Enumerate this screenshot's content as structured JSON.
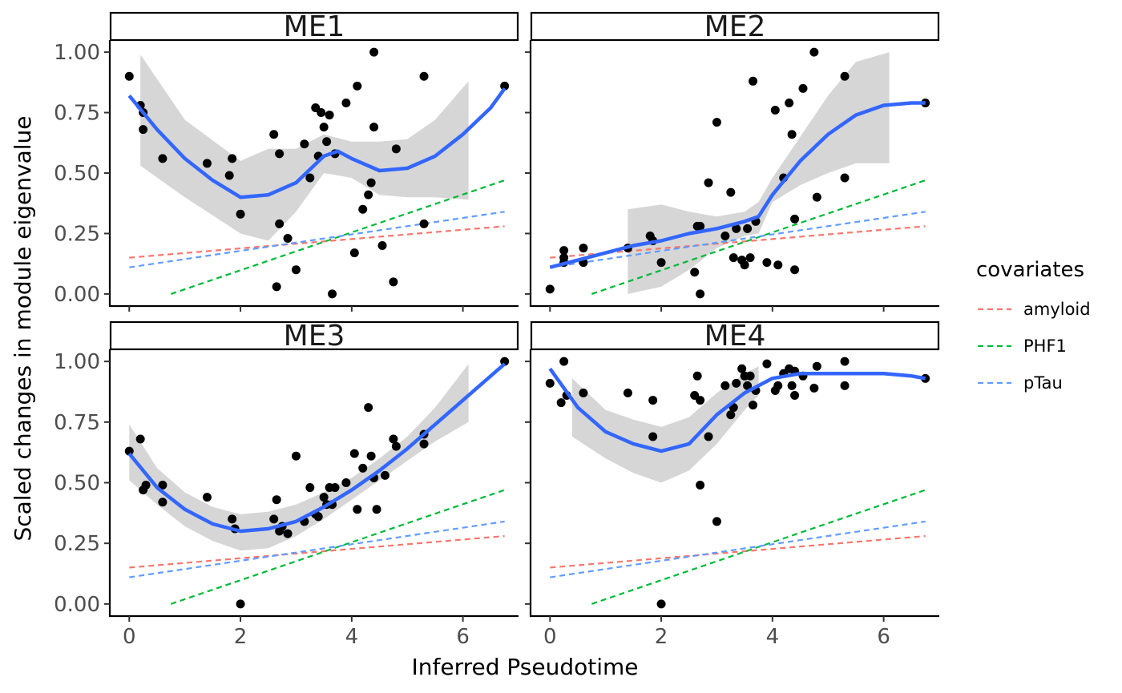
{
  "chart_data": {
    "type": "scatter",
    "xlabel": "Inferred Pseudotime",
    "ylabel": "Scaled changes in module eigenvalue",
    "xlim": [
      -0.35,
      7.0
    ],
    "ylim": [
      -0.05,
      1.05
    ],
    "x_ticks": [
      0,
      2,
      4,
      6
    ],
    "x_tick_labels": [
      "0",
      "2",
      "4",
      "6"
    ],
    "y_ticks": [
      0,
      0.25,
      0.5,
      0.75,
      1.0
    ],
    "y_tick_labels": [
      "0.00",
      "0.25",
      "0.50",
      "0.75",
      "1.00"
    ],
    "grid": false,
    "legend": {
      "title": "covariates",
      "placement": "right",
      "items": [
        {
          "name": "amyloid",
          "color": "#F8766D"
        },
        {
          "name": "PHF1",
          "color": "#00BA38"
        },
        {
          "name": "pTau",
          "color": "#619CFF"
        }
      ]
    },
    "covariate_lines": [
      {
        "name": "amyloid",
        "color": "#F8766D",
        "x": [
          0,
          6.75
        ],
        "y": [
          0.15,
          0.28
        ]
      },
      {
        "name": "PHF1",
        "color": "#00BA38",
        "x": [
          0.75,
          6.75
        ],
        "y": [
          0.0,
          0.47
        ]
      },
      {
        "name": "pTau",
        "color": "#619CFF",
        "x": [
          0,
          6.75
        ],
        "y": [
          0.11,
          0.34
        ]
      }
    ],
    "smooth_color": "#3366FF",
    "point_color": "#000000",
    "ribbon_color": "#999999",
    "panels": [
      {
        "title": "ME1",
        "points": [
          [
            0,
            0.9
          ],
          [
            0.2,
            0.78
          ],
          [
            0.25,
            0.75
          ],
          [
            0.25,
            0.68
          ],
          [
            0.6,
            0.56
          ],
          [
            1.4,
            0.54
          ],
          [
            1.8,
            0.49
          ],
          [
            1.85,
            0.56
          ],
          [
            2.0,
            0.33
          ],
          [
            2.6,
            0.66
          ],
          [
            2.65,
            0.03
          ],
          [
            2.7,
            0.58
          ],
          [
            2.7,
            0.29
          ],
          [
            2.85,
            0.23
          ],
          [
            3.0,
            0.1
          ],
          [
            3.15,
            0.62
          ],
          [
            3.25,
            0.48
          ],
          [
            3.35,
            0.77
          ],
          [
            3.4,
            0.57
          ],
          [
            3.45,
            0.75
          ],
          [
            3.5,
            0.69
          ],
          [
            3.55,
            0.63
          ],
          [
            3.6,
            0.74
          ],
          [
            3.65,
            0.0
          ],
          [
            3.7,
            0.58
          ],
          [
            3.9,
            0.79
          ],
          [
            4.05,
            0.17
          ],
          [
            4.1,
            0.86
          ],
          [
            4.2,
            0.35
          ],
          [
            4.3,
            0.41
          ],
          [
            4.35,
            0.46
          ],
          [
            4.4,
            0.69
          ],
          [
            4.4,
            1.0
          ],
          [
            4.55,
            0.2
          ],
          [
            4.75,
            0.05
          ],
          [
            4.8,
            0.6
          ],
          [
            5.3,
            0.9
          ],
          [
            5.3,
            0.29
          ],
          [
            6.75,
            0.86
          ]
        ],
        "smooth": [
          [
            0,
            0.82
          ],
          [
            0.5,
            0.68
          ],
          [
            1.0,
            0.56
          ],
          [
            1.5,
            0.47
          ],
          [
            2.0,
            0.4
          ],
          [
            2.5,
            0.41
          ],
          [
            3.0,
            0.46
          ],
          [
            3.5,
            0.57
          ],
          [
            3.75,
            0.59
          ],
          [
            4.0,
            0.56
          ],
          [
            4.5,
            0.51
          ],
          [
            5.0,
            0.52
          ],
          [
            5.5,
            0.57
          ],
          [
            6.0,
            0.66
          ],
          [
            6.5,
            0.77
          ],
          [
            6.75,
            0.85
          ]
        ],
        "ribbon_x": [
          0.2,
          1.0,
          2.0,
          2.5,
          3.0,
          3.5,
          4.0,
          4.5,
          5.0,
          5.5,
          6.1
        ],
        "ribbon_lower": [
          0.53,
          0.4,
          0.25,
          0.22,
          0.34,
          0.5,
          0.48,
          0.41,
          0.4,
          0.4,
          0.39
        ],
        "ribbon_upper": [
          0.99,
          0.72,
          0.55,
          0.6,
          0.6,
          0.66,
          0.63,
          0.63,
          0.64,
          0.72,
          0.88
        ]
      },
      {
        "title": "ME2",
        "points": [
          [
            0,
            0.02
          ],
          [
            0.25,
            0.13
          ],
          [
            0.25,
            0.18
          ],
          [
            0.25,
            0.15
          ],
          [
            0.6,
            0.19
          ],
          [
            0.6,
            0.13
          ],
          [
            1.4,
            0.19
          ],
          [
            1.8,
            0.24
          ],
          [
            1.85,
            0.22
          ],
          [
            2.0,
            0.13
          ],
          [
            2.6,
            0.09
          ],
          [
            2.65,
            0.28
          ],
          [
            2.7,
            0.28
          ],
          [
            2.7,
            0.0
          ],
          [
            2.85,
            0.46
          ],
          [
            3.0,
            0.71
          ],
          [
            3.15,
            0.24
          ],
          [
            3.25,
            0.42
          ],
          [
            3.3,
            0.15
          ],
          [
            3.35,
            0.27
          ],
          [
            3.45,
            0.14
          ],
          [
            3.5,
            0.12
          ],
          [
            3.55,
            0.27
          ],
          [
            3.6,
            0.15
          ],
          [
            3.65,
            0.88
          ],
          [
            3.7,
            0.3
          ],
          [
            3.9,
            0.13
          ],
          [
            4.05,
            0.76
          ],
          [
            4.1,
            0.12
          ],
          [
            4.2,
            0.48
          ],
          [
            4.3,
            0.79
          ],
          [
            4.35,
            0.66
          ],
          [
            4.4,
            0.31
          ],
          [
            4.4,
            0.1
          ],
          [
            4.55,
            0.85
          ],
          [
            4.75,
            1.0
          ],
          [
            4.8,
            0.4
          ],
          [
            5.3,
            0.9
          ],
          [
            5.3,
            0.48
          ],
          [
            6.75,
            0.79
          ]
        ],
        "smooth": [
          [
            0,
            0.11
          ],
          [
            0.5,
            0.14
          ],
          [
            1.0,
            0.17
          ],
          [
            1.5,
            0.2
          ],
          [
            2.0,
            0.22
          ],
          [
            2.5,
            0.25
          ],
          [
            3.0,
            0.27
          ],
          [
            3.5,
            0.3
          ],
          [
            3.75,
            0.32
          ],
          [
            4.0,
            0.41
          ],
          [
            4.5,
            0.55
          ],
          [
            5.0,
            0.66
          ],
          [
            5.5,
            0.74
          ],
          [
            6.0,
            0.78
          ],
          [
            6.5,
            0.79
          ],
          [
            6.75,
            0.79
          ]
        ],
        "ribbon_x": [
          1.4,
          2.0,
          2.5,
          3.0,
          3.5,
          3.75,
          4.0,
          4.5,
          5.0,
          5.5,
          6.1
        ],
        "ribbon_lower": [
          0.0,
          0.03,
          0.1,
          0.19,
          0.24,
          0.25,
          0.38,
          0.45,
          0.5,
          0.54,
          0.54
        ],
        "ribbon_upper": [
          0.35,
          0.37,
          0.34,
          0.32,
          0.34,
          0.38,
          0.48,
          0.65,
          0.82,
          0.96,
          1.0
        ]
      },
      {
        "title": "ME3",
        "points": [
          [
            0,
            0.63
          ],
          [
            0.2,
            0.68
          ],
          [
            0.25,
            0.47
          ],
          [
            0.3,
            0.49
          ],
          [
            0.6,
            0.49
          ],
          [
            0.6,
            0.42
          ],
          [
            1.4,
            0.44
          ],
          [
            1.85,
            0.35
          ],
          [
            1.9,
            0.31
          ],
          [
            2.0,
            0.0
          ],
          [
            2.6,
            0.35
          ],
          [
            2.65,
            0.43
          ],
          [
            2.7,
            0.3
          ],
          [
            2.75,
            0.32
          ],
          [
            2.85,
            0.29
          ],
          [
            3.0,
            0.61
          ],
          [
            3.15,
            0.34
          ],
          [
            3.25,
            0.48
          ],
          [
            3.35,
            0.37
          ],
          [
            3.4,
            0.36
          ],
          [
            3.5,
            0.44
          ],
          [
            3.55,
            0.41
          ],
          [
            3.6,
            0.48
          ],
          [
            3.65,
            0.41
          ],
          [
            3.7,
            0.48
          ],
          [
            3.9,
            0.5
          ],
          [
            4.05,
            0.62
          ],
          [
            4.1,
            0.39
          ],
          [
            4.2,
            0.56
          ],
          [
            4.3,
            0.81
          ],
          [
            4.35,
            0.61
          ],
          [
            4.4,
            0.52
          ],
          [
            4.45,
            0.39
          ],
          [
            4.6,
            0.53
          ],
          [
            4.75,
            0.68
          ],
          [
            4.8,
            0.65
          ],
          [
            5.3,
            0.7
          ],
          [
            5.3,
            0.66
          ],
          [
            6.75,
            1.0
          ]
        ],
        "smooth": [
          [
            0,
            0.62
          ],
          [
            0.5,
            0.48
          ],
          [
            1.0,
            0.39
          ],
          [
            1.5,
            0.33
          ],
          [
            2.0,
            0.3
          ],
          [
            2.5,
            0.31
          ],
          [
            3.0,
            0.34
          ],
          [
            3.5,
            0.4
          ],
          [
            4.0,
            0.47
          ],
          [
            4.5,
            0.55
          ],
          [
            5.0,
            0.64
          ],
          [
            5.5,
            0.74
          ],
          [
            6.0,
            0.84
          ],
          [
            6.5,
            0.94
          ],
          [
            6.75,
            0.99
          ]
        ],
        "ribbon_x": [
          0,
          0.5,
          1.0,
          1.5,
          2.0,
          2.5,
          3.0,
          3.5,
          4.0,
          4.5,
          5.0,
          5.5,
          6.1
        ],
        "ribbon_lower": [
          0.51,
          0.41,
          0.32,
          0.26,
          0.22,
          0.23,
          0.28,
          0.35,
          0.43,
          0.51,
          0.59,
          0.67,
          0.75
        ],
        "ribbon_upper": [
          0.74,
          0.56,
          0.46,
          0.4,
          0.37,
          0.38,
          0.41,
          0.46,
          0.52,
          0.6,
          0.69,
          0.81,
          0.99
        ]
      },
      {
        "title": "ME4",
        "points": [
          [
            0,
            0.91
          ],
          [
            0.2,
            0.83
          ],
          [
            0.25,
            1.0
          ],
          [
            0.3,
            0.86
          ],
          [
            0.6,
            0.87
          ],
          [
            1.4,
            0.87
          ],
          [
            1.85,
            0.84
          ],
          [
            1.85,
            0.69
          ],
          [
            2.0,
            0.0
          ],
          [
            2.6,
            0.86
          ],
          [
            2.65,
            0.94
          ],
          [
            2.7,
            0.49
          ],
          [
            2.7,
            0.84
          ],
          [
            2.85,
            0.69
          ],
          [
            3.0,
            0.34
          ],
          [
            3.15,
            0.9
          ],
          [
            3.25,
            0.78
          ],
          [
            3.3,
            0.81
          ],
          [
            3.35,
            0.91
          ],
          [
            3.45,
            0.97
          ],
          [
            3.5,
            0.94
          ],
          [
            3.55,
            0.9
          ],
          [
            3.6,
            0.94
          ],
          [
            3.65,
            0.82
          ],
          [
            3.7,
            0.88
          ],
          [
            3.9,
            0.99
          ],
          [
            4.05,
            0.88
          ],
          [
            4.1,
            0.9
          ],
          [
            4.2,
            0.95
          ],
          [
            4.3,
            0.97
          ],
          [
            4.35,
            0.9
          ],
          [
            4.4,
            0.86
          ],
          [
            4.4,
            0.96
          ],
          [
            4.55,
            0.94
          ],
          [
            4.75,
            0.89
          ],
          [
            4.8,
            0.98
          ],
          [
            5.3,
            1.0
          ],
          [
            5.3,
            0.9
          ],
          [
            6.75,
            0.93
          ]
        ],
        "smooth": [
          [
            0,
            0.97
          ],
          [
            0.5,
            0.81
          ],
          [
            1.0,
            0.71
          ],
          [
            1.5,
            0.66
          ],
          [
            2.0,
            0.63
          ],
          [
            2.5,
            0.66
          ],
          [
            3.0,
            0.78
          ],
          [
            3.5,
            0.87
          ],
          [
            4.0,
            0.93
          ],
          [
            4.5,
            0.95
          ],
          [
            5.0,
            0.95
          ],
          [
            5.5,
            0.95
          ],
          [
            6.0,
            0.95
          ],
          [
            6.5,
            0.94
          ],
          [
            6.75,
            0.93
          ]
        ],
        "ribbon_x": [
          0.4,
          1.0,
          1.5,
          2.0,
          2.5,
          3.0,
          3.5,
          3.75
        ],
        "ribbon_lower": [
          0.69,
          0.6,
          0.54,
          0.5,
          0.55,
          0.66,
          0.8,
          0.86
        ],
        "ribbon_upper": [
          0.93,
          0.8,
          0.76,
          0.73,
          0.77,
          0.87,
          0.95,
          0.98
        ]
      }
    ]
  }
}
